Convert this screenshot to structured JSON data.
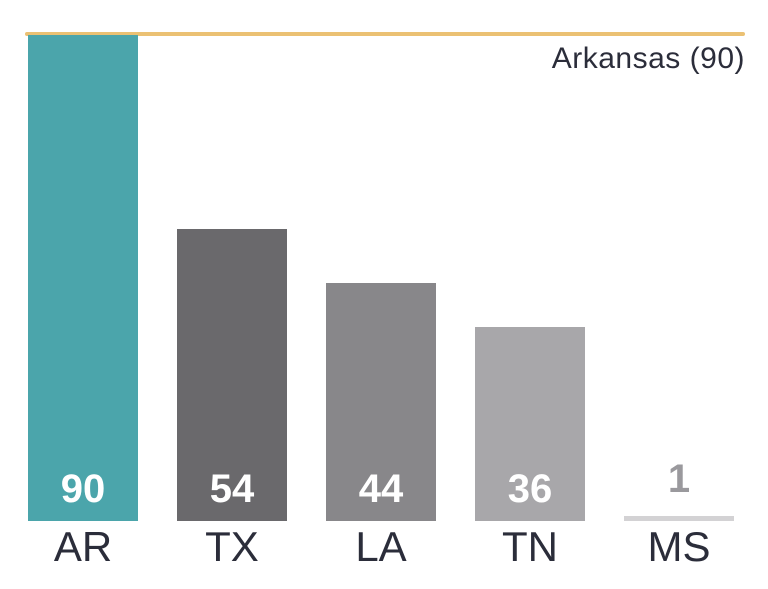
{
  "chart_data": {
    "type": "bar",
    "categories": [
      "AR",
      "TX",
      "LA",
      "TN",
      "MS"
    ],
    "values": [
      90,
      54,
      44,
      36,
      1
    ],
    "value_labels": [
      "90",
      "54",
      "44",
      "36",
      "1"
    ],
    "title": "",
    "xlabel": "",
    "ylabel": "",
    "ylim": [
      0,
      90
    ],
    "grid": false,
    "legend_position": "none",
    "annotation": "Arkansas (90)",
    "reference_line": {
      "value": 90,
      "label": "Arkansas (90)"
    },
    "bar_colors": [
      "#4BA5AB",
      "#6A696C",
      "#88878A",
      "#A8A7AA",
      "#D3D2D4"
    ],
    "value_label_placements": [
      "inside",
      "inside",
      "inside",
      "inside",
      "above"
    ]
  },
  "colors": {
    "background": "#FFFFFF",
    "reference_line": "#EBC173",
    "text_dark": "#2B2D3A",
    "value_label_inside": "#FFFFFF",
    "value_label_above": "#9A999D"
  }
}
